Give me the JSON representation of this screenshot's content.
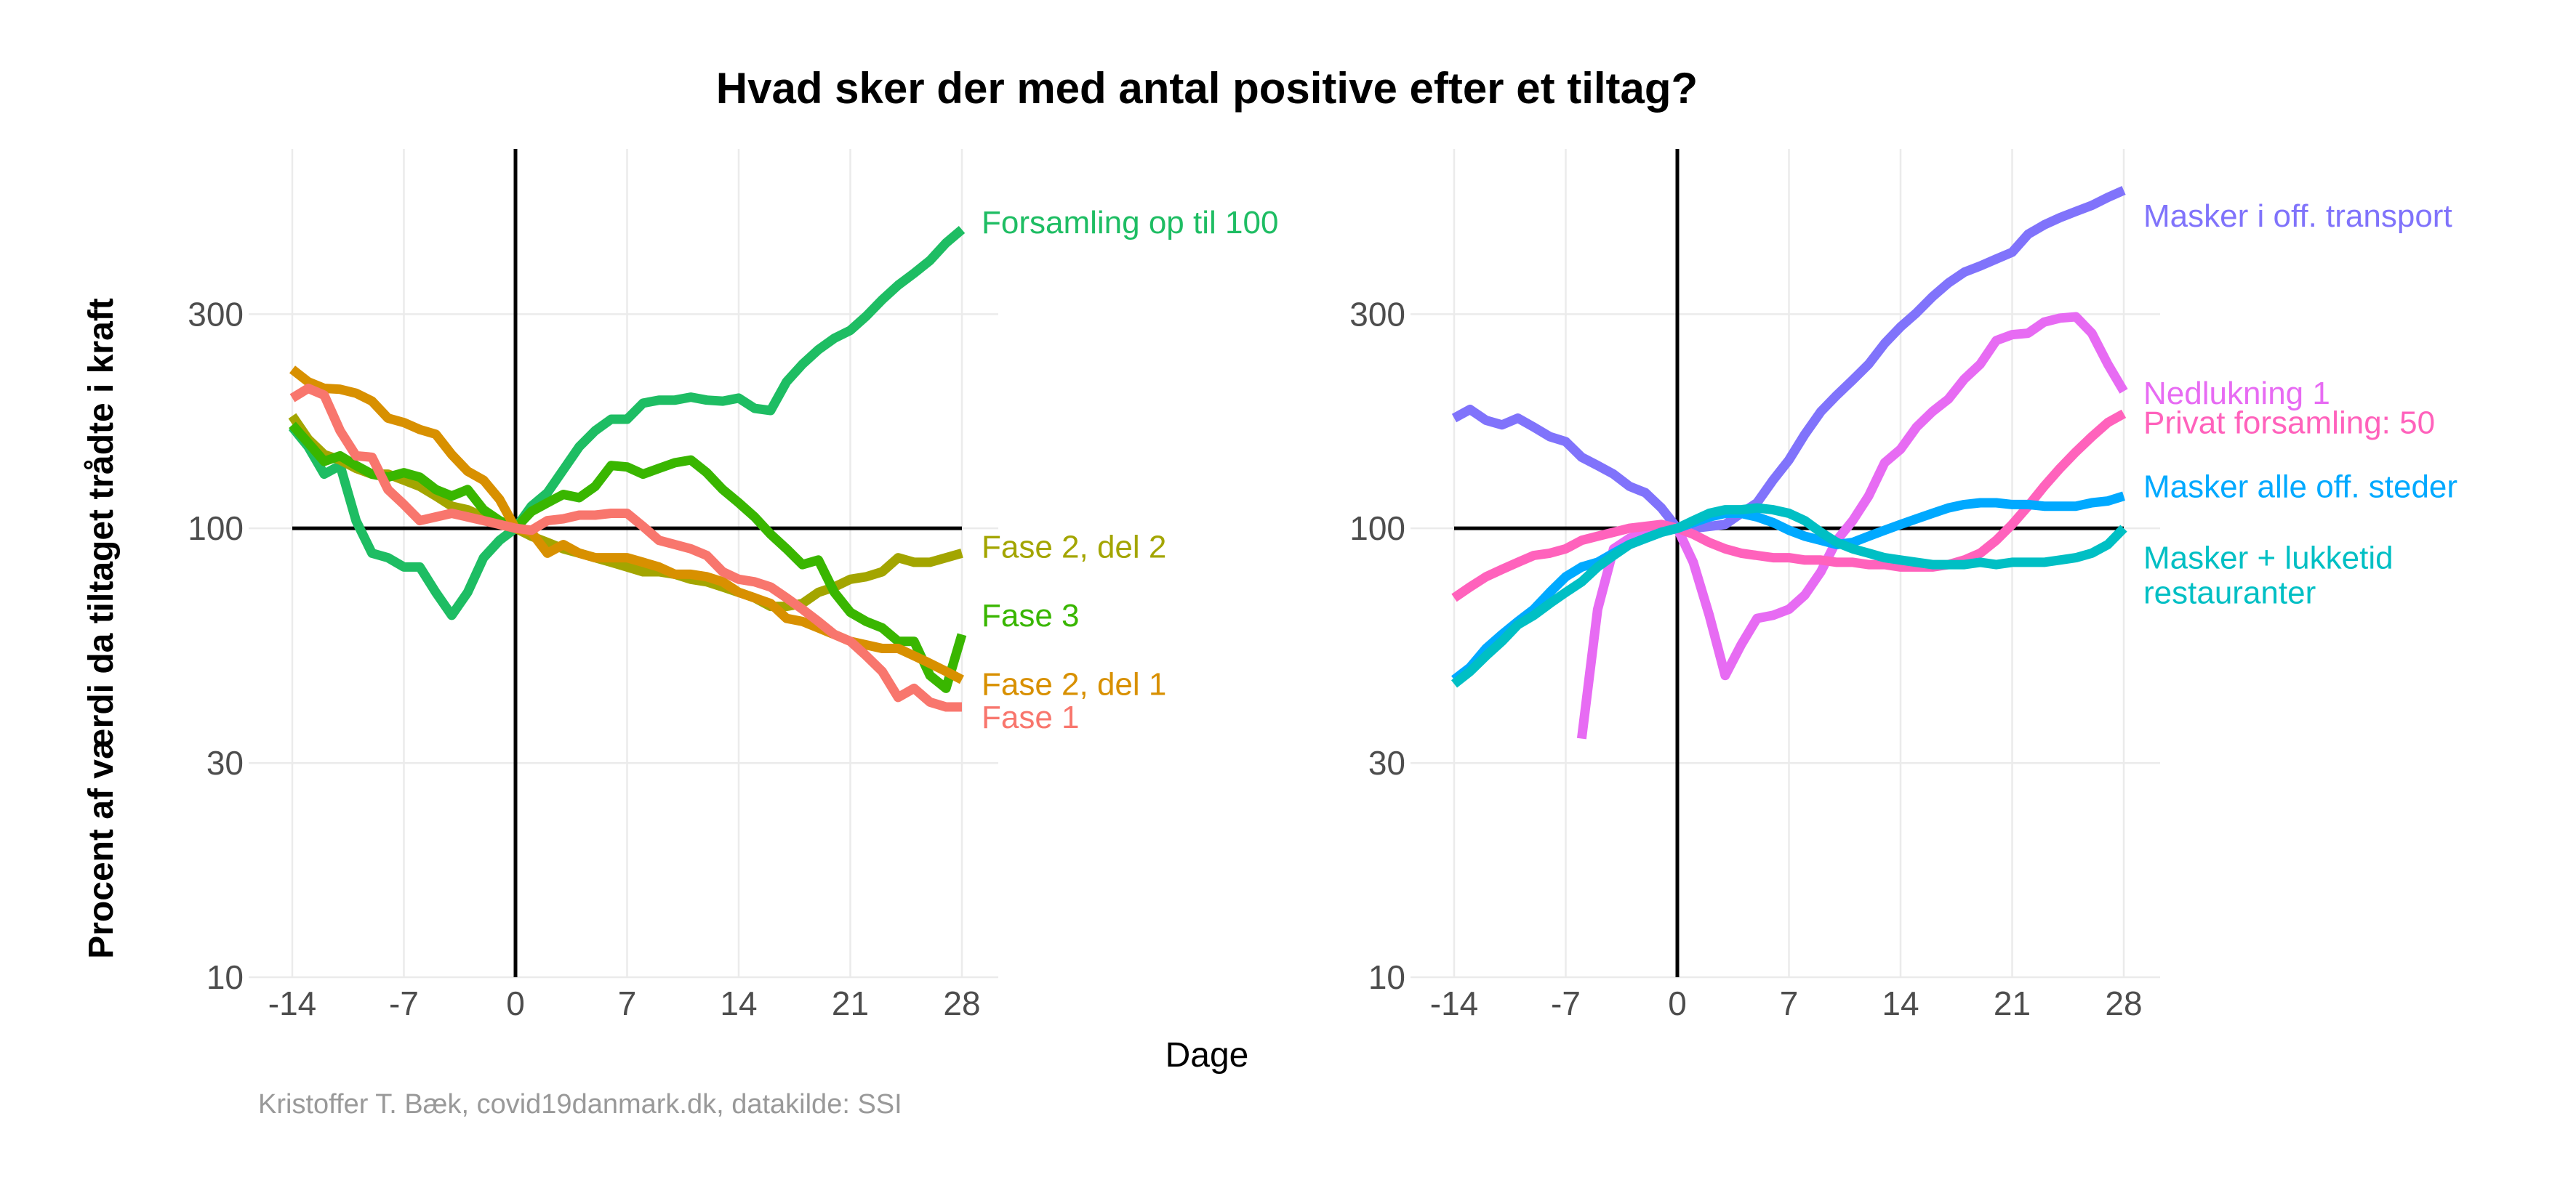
{
  "title": "Hvad sker der med antal positive efter et tiltag?",
  "xlabel": "Dage",
  "ylabel": "Procent af værdi da tiltaget trådte i kraft",
  "caption": "Kristoffer T. Bæk, covid19danmark.dk, datakilde: SSI",
  "chart_data": [
    {
      "type": "line",
      "x_ticks": [
        -14,
        -7,
        0,
        7,
        14,
        21,
        28
      ],
      "y_ticks": [
        10,
        30,
        100,
        300
      ],
      "y_scale": "log",
      "xlim": [
        -14,
        28
      ],
      "ylim": [
        10,
        700
      ],
      "grid": true,
      "reference_lines": {
        "x": 0,
        "y": 100
      },
      "series": [
        {
          "name": "Forsamling op til 100",
          "color": "#1ebd63",
          "label_y": 480,
          "x": [
            -14,
            -13,
            -12,
            -11,
            -10,
            -9,
            -8,
            -7,
            -6,
            -5,
            -4,
            -3,
            -2,
            -1,
            0,
            1,
            2,
            3,
            4,
            5,
            6,
            7,
            8,
            9,
            10,
            11,
            12,
            13,
            14,
            15,
            16,
            17,
            18,
            19,
            20,
            21,
            22,
            23,
            24,
            25,
            26,
            27,
            28
          ],
          "y": [
            168,
            152,
            132,
            138,
            104,
            88,
            86,
            82,
            82,
            72,
            64,
            72,
            86,
            94,
            100,
            112,
            120,
            135,
            152,
            165,
            175,
            175,
            190,
            193,
            193,
            196,
            193,
            192,
            195,
            185,
            183,
            212,
            232,
            250,
            265,
            276,
            297,
            323,
            348,
            370,
            395,
            432,
            463
          ]
        },
        {
          "name": "Fase 2, del 2",
          "color": "#a3a500",
          "label_y": 91,
          "x": [
            -14,
            -13,
            -12,
            -11,
            -10,
            -9,
            -8,
            -7,
            -6,
            -5,
            -4,
            -3,
            -2,
            -1,
            0,
            1,
            2,
            3,
            4,
            5,
            6,
            7,
            8,
            9,
            10,
            11,
            12,
            13,
            14,
            15,
            16,
            17,
            18,
            19,
            20,
            21,
            22,
            23,
            24,
            25,
            26,
            27,
            28
          ],
          "y": [
            178,
            158,
            146,
            142,
            136,
            132,
            132,
            128,
            124,
            118,
            112,
            110,
            106,
            102,
            100,
            96,
            93,
            90,
            88,
            86,
            84,
            82,
            80,
            80,
            79,
            77,
            76,
            74,
            72,
            70,
            67,
            67,
            68,
            72,
            74,
            77,
            78,
            80,
            86,
            84,
            84,
            86,
            88
          ]
        },
        {
          "name": "Fase 3",
          "color": "#39b600",
          "label_y": 64,
          "x": [
            -14,
            -13,
            -12,
            -11,
            -10,
            -9,
            -8,
            -7,
            -6,
            -5,
            -4,
            -3,
            -2,
            -1,
            0,
            1,
            2,
            3,
            4,
            5,
            6,
            7,
            8,
            9,
            10,
            11,
            12,
            13,
            14,
            15,
            16,
            17,
            18,
            19,
            20,
            21,
            22,
            23,
            24,
            25,
            26,
            27,
            28
          ],
          "y": [
            170,
            155,
            141,
            145,
            138,
            132,
            130,
            133,
            130,
            122,
            118,
            122,
            110,
            104,
            100,
            109,
            114,
            119,
            117,
            124,
            138,
            137,
            132,
            136,
            140,
            142,
            133,
            122,
            114,
            106,
            97,
            90,
            83,
            85,
            72,
            65,
            62,
            60,
            56,
            56,
            47,
            44,
            58
          ]
        },
        {
          "name": "Fase 2, del 1",
          "color": "#d89000",
          "label_y": 45,
          "x": [
            -14,
            -13,
            -12,
            -11,
            -10,
            -9,
            -8,
            -7,
            -6,
            -5,
            -4,
            -3,
            -2,
            -1,
            0,
            1,
            2,
            3,
            4,
            5,
            6,
            7,
            8,
            9,
            10,
            11,
            12,
            13,
            14,
            15,
            16,
            17,
            18,
            19,
            20,
            21,
            22,
            23,
            24,
            25,
            26,
            27,
            28
          ],
          "y": [
            226,
            212,
            205,
            204,
            200,
            192,
            176,
            172,
            166,
            162,
            146,
            134,
            128,
            116,
            100,
            98,
            88,
            92,
            88,
            86,
            86,
            86,
            84,
            82,
            79,
            79,
            78,
            76,
            72,
            70,
            68,
            63,
            62,
            60,
            58,
            56,
            55,
            54,
            54,
            52,
            50,
            48,
            46
          ]
        },
        {
          "name": "Fase 1",
          "color": "#f8766d",
          "label_y": 38,
          "x": [
            -14,
            -13,
            -12,
            -11,
            -10,
            -9,
            -8,
            -7,
            -6,
            -5,
            -4,
            -3,
            -2,
            -1,
            0,
            1,
            2,
            3,
            4,
            5,
            6,
            7,
            8,
            9,
            10,
            11,
            12,
            13,
            14,
            15,
            16,
            17,
            18,
            19,
            20,
            21,
            22,
            23,
            24,
            25,
            26,
            27,
            28
          ],
          "y": [
            195,
            205,
            198,
            165,
            145,
            144,
            122,
            113,
            104,
            106,
            108,
            106,
            104,
            102,
            100,
            99,
            104,
            105,
            107,
            107,
            108,
            108,
            101,
            94,
            92,
            90,
            87,
            80,
            77,
            76,
            74,
            70,
            66,
            62,
            58,
            56,
            52,
            48,
            42,
            44,
            41,
            40,
            40
          ]
        }
      ]
    },
    {
      "type": "line",
      "x_ticks": [
        -14,
        -7,
        0,
        7,
        14,
        21,
        28
      ],
      "y_ticks": [
        10,
        30,
        100,
        300
      ],
      "y_scale": "log",
      "xlim": [
        -14,
        28
      ],
      "ylim": [
        10,
        700
      ],
      "grid": true,
      "reference_lines": {
        "x": 0,
        "y": 100
      },
      "series": [
        {
          "name": "Masker i off. transport",
          "color": "#8073fb",
          "label_y": 497,
          "x": [
            -14,
            -13,
            -12,
            -11,
            -10,
            -9,
            -8,
            -7,
            -6,
            -5,
            -4,
            -3,
            -2,
            -1,
            0,
            1,
            2,
            3,
            4,
            5,
            6,
            7,
            8,
            9,
            10,
            11,
            12,
            13,
            14,
            15,
            16,
            17,
            18,
            19,
            20,
            21,
            22,
            23,
            24,
            25,
            26,
            27,
            28
          ],
          "y": [
            176,
            184,
            174,
            170,
            176,
            168,
            160,
            156,
            144,
            138,
            132,
            124,
            120,
            111,
            100,
            100,
            101,
            102,
            108,
            114,
            128,
            142,
            162,
            182,
            198,
            214,
            232,
            258,
            281,
            302,
            328,
            352,
            372,
            384,
            398,
            412,
            452,
            474,
            492,
            508,
            524,
            546,
            566
          ]
        },
        {
          "name": "Nedlukning 1",
          "color": "#e76bf3",
          "label_y": 200,
          "x": [
            -6,
            -5,
            -4,
            -3,
            -2,
            -1,
            0,
            1,
            2,
            3,
            4,
            5,
            6,
            7,
            8,
            9,
            10,
            11,
            12,
            13,
            14,
            15,
            16,
            17,
            18,
            19,
            20,
            21,
            22,
            23,
            24,
            25,
            26,
            27,
            28
          ],
          "y": [
            34,
            66,
            90,
            95,
            98,
            99,
            100,
            84,
            64,
            47,
            55,
            63,
            64,
            66,
            71,
            80,
            94,
            104,
            118,
            140,
            150,
            168,
            182,
            194,
            215,
            232,
            262,
            270,
            272,
            288,
            294,
            296,
            272,
            232,
            202
          ]
        },
        {
          "name": "Privat forsamling: 50",
          "color": "#ff62bc",
          "label_y": 172,
          "x": [
            -14,
            -13,
            -12,
            -11,
            -10,
            -9,
            -8,
            -7,
            -6,
            -5,
            -4,
            -3,
            -2,
            -1,
            0,
            1,
            2,
            3,
            4,
            5,
            6,
            7,
            8,
            9,
            10,
            11,
            12,
            13,
            14,
            15,
            16,
            17,
            18,
            19,
            20,
            21,
            22,
            23,
            24,
            25,
            26,
            27,
            28
          ],
          "y": [
            70,
            74,
            78,
            81,
            84,
            87,
            88,
            90,
            94,
            96,
            98,
            100,
            101,
            102,
            100,
            97,
            93,
            90,
            88,
            87,
            86,
            86,
            85,
            85,
            84,
            84,
            83,
            83,
            82,
            82,
            82,
            83,
            85,
            88,
            94,
            102,
            112,
            124,
            136,
            148,
            160,
            172,
            180
          ]
        },
        {
          "name": "Masker alle off. steder",
          "color": "#00a9ff",
          "label_y": 124,
          "x": [
            -14,
            -13,
            -12,
            -11,
            -10,
            -9,
            -8,
            -7,
            -6,
            -5,
            -4,
            -3,
            -2,
            -1,
            0,
            1,
            2,
            3,
            4,
            5,
            6,
            7,
            8,
            9,
            10,
            11,
            12,
            13,
            14,
            15,
            16,
            17,
            18,
            19,
            20,
            21,
            22,
            23,
            24,
            25,
            26,
            27,
            28
          ],
          "y": [
            46,
            49,
            54,
            58,
            62,
            66,
            72,
            78,
            82,
            84,
            88,
            92,
            95,
            98,
            100,
            103,
            106,
            108,
            108,
            106,
            103,
            99,
            96,
            94,
            92,
            93,
            96,
            99,
            102,
            105,
            108,
            111,
            113,
            114,
            114,
            113,
            113,
            112,
            112,
            112,
            114,
            115,
            118
          ]
        },
        {
          "name": "Masker + lukketid\nrestauranter",
          "color": "#00bfc4",
          "label_y": 86,
          "x": [
            -14,
            -13,
            -12,
            -11,
            -10,
            -9,
            -8,
            -7,
            -6,
            -5,
            -4,
            -3,
            -2,
            -1,
            0,
            1,
            2,
            3,
            4,
            5,
            6,
            7,
            8,
            9,
            10,
            11,
            12,
            13,
            14,
            15,
            16,
            17,
            18,
            19,
            20,
            21,
            22,
            23,
            24,
            25,
            26,
            27,
            28
          ],
          "y": [
            45,
            48,
            52,
            56,
            61,
            64,
            68,
            72,
            76,
            82,
            87,
            92,
            95,
            98,
            100,
            104,
            108,
            110,
            110,
            111,
            110,
            108,
            104,
            98,
            93,
            90,
            88,
            86,
            85,
            84,
            83,
            83,
            83,
            84,
            83,
            84,
            84,
            84,
            85,
            86,
            88,
            92,
            100
          ]
        }
      ]
    }
  ]
}
